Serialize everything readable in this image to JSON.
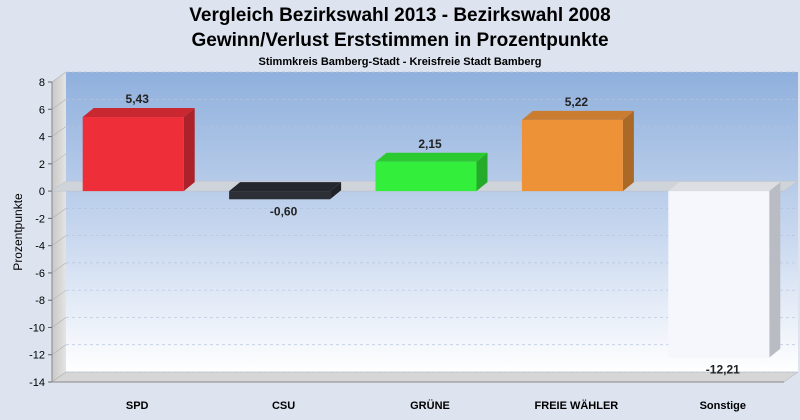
{
  "chart_data": {
    "type": "bar",
    "title": "Vergleich Bezirkswahl 2013 - Bezirkswahl 2008",
    "subtitle": "Gewinn/Verlust Erststimmen in Prozentpunkte",
    "caption": "Stimmkreis Bamberg-Stadt - Kreisfreie Stadt Bamberg",
    "xlabel": "",
    "ylabel": "Prozentpunkte",
    "ylim": [
      -14,
      8
    ],
    "yticks": [
      8,
      6,
      4,
      2,
      0,
      -2,
      -4,
      -6,
      -8,
      -10,
      -12,
      -14
    ],
    "categories": [
      "SPD",
      "CSU",
      "GRÜNE",
      "FREIE WÄHLER",
      "Sonstige"
    ],
    "values": [
      5.43,
      -0.6,
      2.15,
      5.22,
      -12.21
    ],
    "value_labels": [
      "5,43",
      "-0,60",
      "2,15",
      "5,22",
      "-12,21"
    ],
    "colors": [
      "#ee2f3a",
      "#2c2f36",
      "#33ee3a",
      "#ee9238",
      "#f6f7fc"
    ],
    "grid": true,
    "legend": "none"
  }
}
